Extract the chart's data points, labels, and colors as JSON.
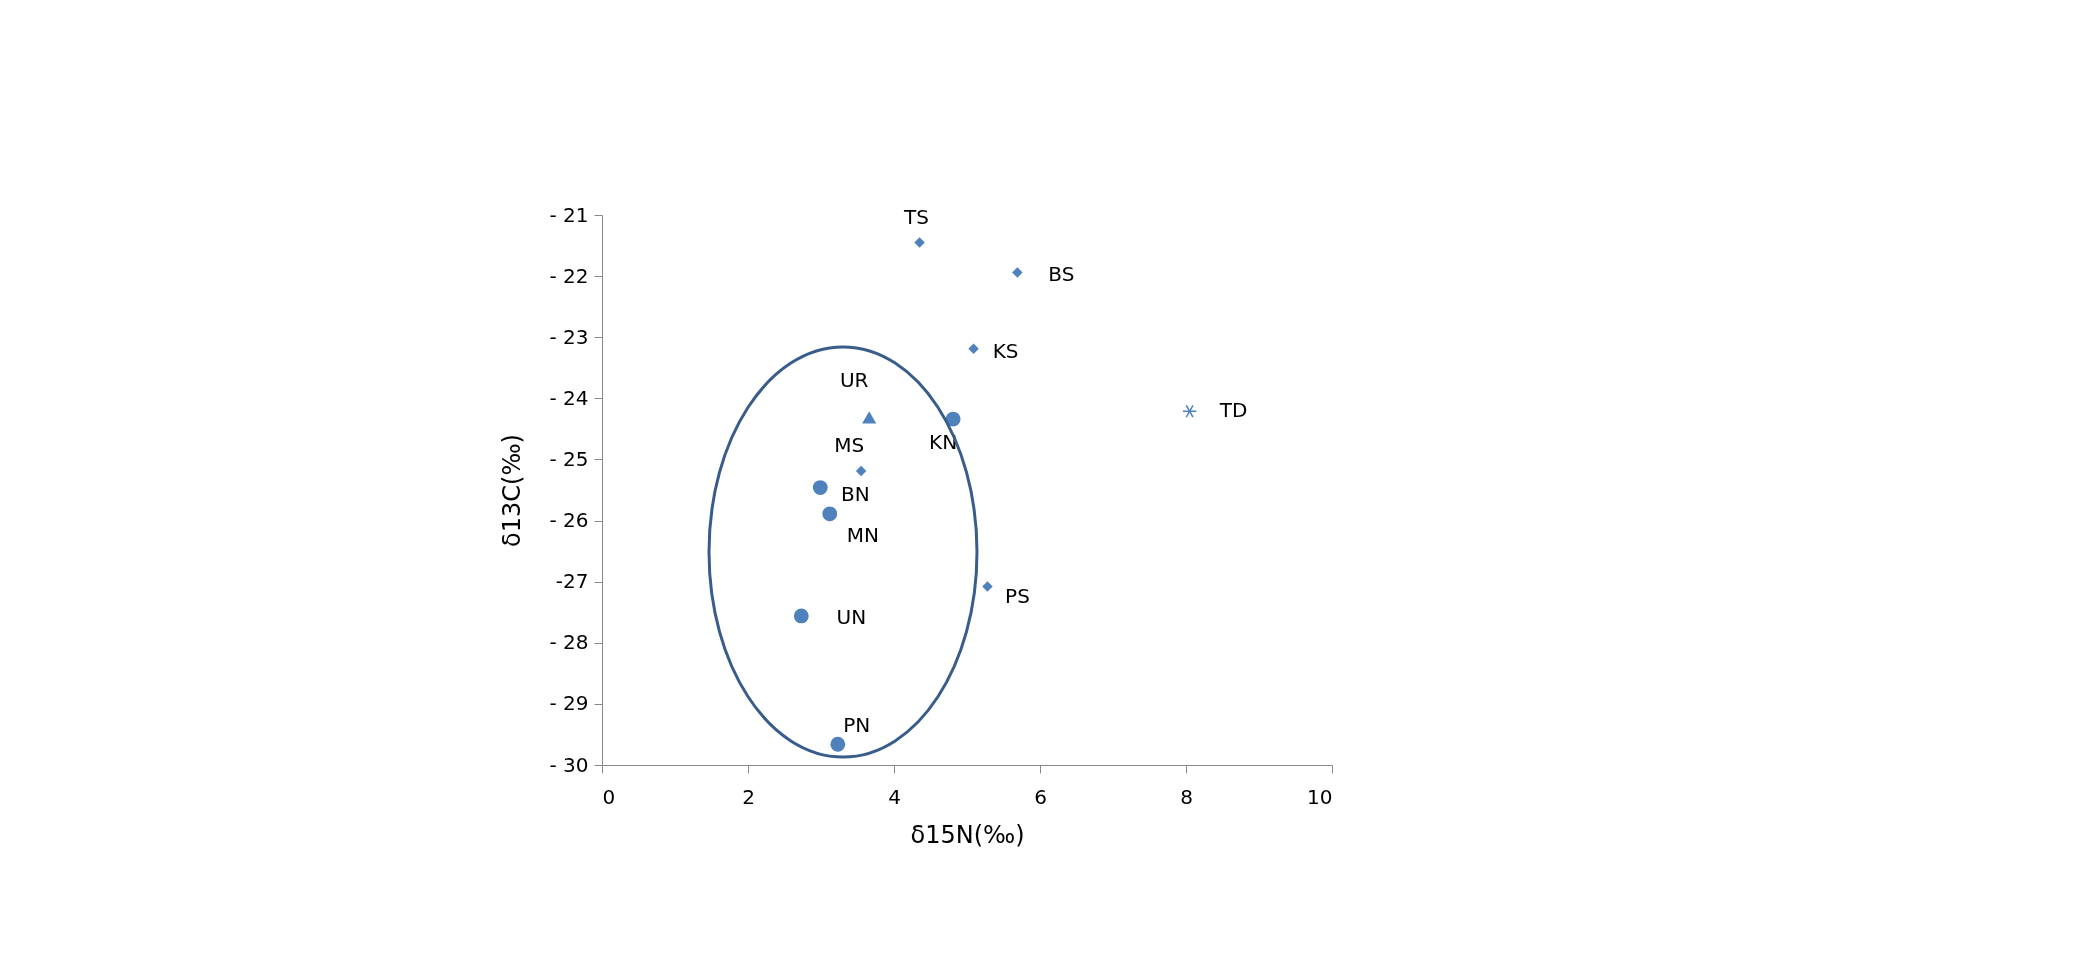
{
  "chart_data": {
    "type": "scatter",
    "xlabel": "δ15N(‰)",
    "ylabel": "δ13C(‰)",
    "xlim": [
      0,
      10
    ],
    "xticks": [
      0,
      2,
      4,
      6,
      8,
      10
    ],
    "ylim": [
      -30,
      -21
    ],
    "yticks": [
      {
        "value": -21,
        "label": "- 21"
      },
      {
        "value": -22,
        "label": "- 22"
      },
      {
        "value": -23,
        "label": "- 23"
      },
      {
        "value": -24,
        "label": "- 24"
      },
      {
        "value": -25,
        "label": "- 25"
      },
      {
        "value": -26,
        "label": "- 26"
      },
      {
        "value": -27,
        "label": "-27"
      },
      {
        "value": -28,
        "label": "- 28"
      },
      {
        "value": -29,
        "label": "- 29"
      },
      {
        "value": -30,
        "label": "- 30"
      }
    ],
    "grid": false,
    "series": [
      {
        "color": "#4f81bd",
        "marker": "diamond",
        "x": [
          4.35,
          5.69,
          5.09,
          3.55,
          5.28
        ],
        "values": [
          -21.45,
          -21.94,
          -23.19,
          -25.19,
          -27.08
        ]
      },
      {
        "color": "#4f81bd",
        "marker": "circle",
        "x": [
          4.81,
          2.99,
          3.12,
          2.73,
          3.23
        ],
        "values": [
          -24.34,
          -25.46,
          -25.89,
          -27.56,
          -29.66
        ]
      },
      {
        "color": "#4f81bd",
        "marker": "triangle",
        "x": [
          3.66
        ],
        "values": [
          -24.31
        ]
      },
      {
        "color": "#4f81bd",
        "marker": "cross",
        "x": [
          8.05
        ],
        "values": [
          -24.21
        ]
      }
    ],
    "annotations": [
      {
        "text": "TS",
        "x": 4.35,
        "y": -21.45
      },
      {
        "text": "BS",
        "x": 5.69,
        "y": -21.94
      },
      {
        "text": "KS",
        "x": 5.09,
        "y": -23.19
      },
      {
        "text": "TD",
        "x": 8.05,
        "y": -24.21
      },
      {
        "text": "UR",
        "x": 3.66,
        "y": -24.31
      },
      {
        "text": "KN",
        "x": 4.81,
        "y": -24.34
      },
      {
        "text": "MS",
        "x": 3.55,
        "y": -25.19
      },
      {
        "text": "BN",
        "x": 2.99,
        "y": -25.46
      },
      {
        "text": "MN",
        "x": 3.12,
        "y": -25.89
      },
      {
        "text": "PS",
        "x": 5.28,
        "y": -27.08
      },
      {
        "text": "UN",
        "x": 2.73,
        "y": -27.56
      },
      {
        "text": "PN",
        "x": 3.23,
        "y": -29.66
      }
    ]
  }
}
